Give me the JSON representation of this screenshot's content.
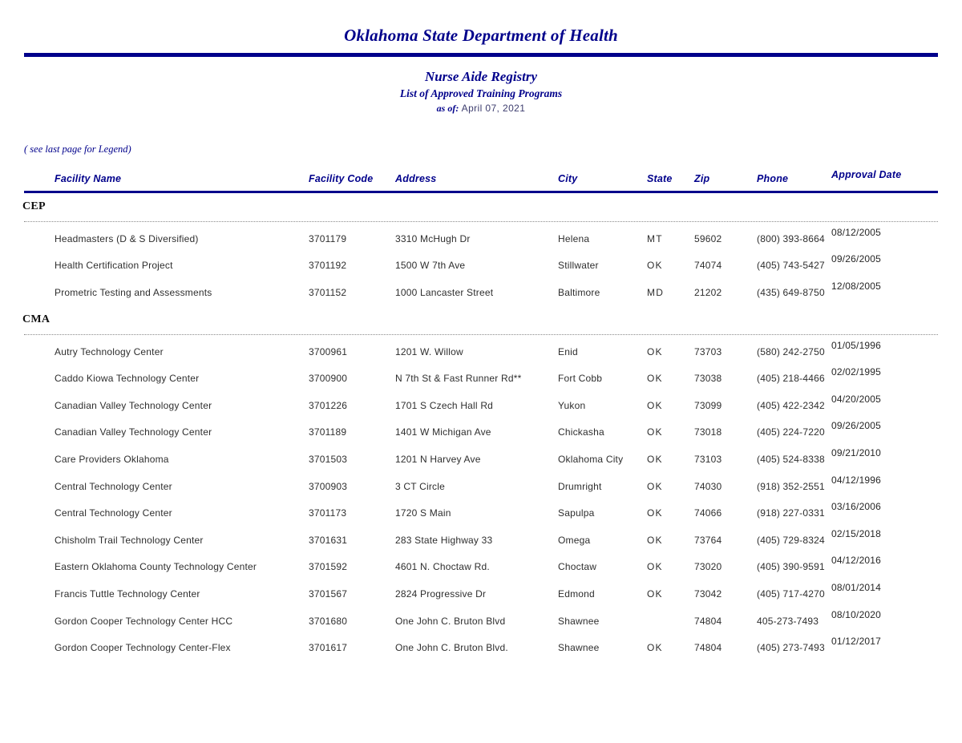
{
  "header": {
    "title": "Oklahoma State Department of Health",
    "subtitle1": "Nurse Aide Registry",
    "subtitle2": "List of Approved Training Programs",
    "as_of_label": "as of:",
    "as_of_date": "April 07, 2021",
    "legend_note": "( see last page for Legend)"
  },
  "table": {
    "columns": [
      "Facility Name",
      "Facility Code",
      "Address",
      "City",
      "State",
      "Zip",
      "Phone",
      "Approval Date"
    ],
    "sections": [
      {
        "name": "CEP",
        "rows": [
          [
            "Headmasters (D & S Diversified)",
            "3701179",
            "3310 McHugh Dr",
            "Helena",
            "MT",
            "59602",
            "(800) 393-8664",
            "08/12/2005"
          ],
          [
            "Health Certification Project",
            "3701192",
            "1500 W 7th Ave",
            "Stillwater",
            "OK",
            "74074",
            "(405) 743-5427",
            "09/26/2005"
          ],
          [
            "Prometric Testing and Assessments",
            "3701152",
            "1000 Lancaster Street",
            "Baltimore",
            "MD",
            "21202",
            "(435) 649-8750",
            "12/08/2005"
          ]
        ]
      },
      {
        "name": "CMA",
        "rows": [
          [
            "Autry Technology Center",
            "3700961",
            "1201 W. Willow",
            "Enid",
            "OK",
            "73703",
            "(580) 242-2750",
            "01/05/1996"
          ],
          [
            "Caddo Kiowa Technology Center",
            "3700900",
            "N 7th St & Fast Runner Rd**",
            "Fort Cobb",
            "OK",
            "73038",
            "(405) 218-4466",
            "02/02/1995"
          ],
          [
            "Canadian Valley Technology Center",
            "3701226",
            "1701 S Czech Hall Rd",
            "Yukon",
            "OK",
            "73099",
            "(405) 422-2342",
            "04/20/2005"
          ],
          [
            "Canadian Valley Technology Center",
            "3701189",
            "1401 W Michigan Ave",
            "Chickasha",
            "OK",
            "73018",
            "(405) 224-7220",
            "09/26/2005"
          ],
          [
            "Care Providers Oklahoma",
            "3701503",
            "1201 N Harvey Ave",
            "Oklahoma City",
            "OK",
            "73103",
            "(405) 524-8338",
            "09/21/2010"
          ],
          [
            "Central Technology Center",
            "3700903",
            "3 CT Circle",
            "Drumright",
            "OK",
            "74030",
            "(918) 352-2551",
            "04/12/1996"
          ],
          [
            "Central Technology Center",
            "3701173",
            "1720 S Main",
            "Sapulpa",
            "OK",
            "74066",
            "(918) 227-0331",
            "03/16/2006"
          ],
          [
            "Chisholm Trail Technology Center",
            "3701631",
            "283 State Highway 33",
            "Omega",
            "OK",
            "73764",
            "(405) 729-8324",
            "02/15/2018"
          ],
          [
            "Eastern Oklahoma County Technology Center",
            "3701592",
            "4601 N. Choctaw Rd.",
            "Choctaw",
            "OK",
            "73020",
            "(405) 390-9591",
            "04/12/2016"
          ],
          [
            "Francis Tuttle Technology Center",
            "3701567",
            "2824 Progressive Dr",
            "Edmond",
            "OK",
            "73042",
            "(405) 717-4270",
            "08/01/2014"
          ],
          [
            "Gordon Cooper Technology Center HCC",
            "3701680",
            "One John C. Bruton Blvd",
            "Shawnee",
            "",
            "74804",
            "405-273-7493",
            "08/10/2020"
          ],
          [
            "Gordon Cooper Technology Center-Flex",
            "3701617",
            "One John C. Bruton Blvd.",
            "Shawnee",
            "OK",
            "74804",
            "(405) 273-7493",
            "01/12/2017"
          ]
        ]
      }
    ]
  },
  "colors": {
    "accent": "#00008B",
    "body_text": "#2e2e2e",
    "dotted": "#8a8a8a"
  }
}
